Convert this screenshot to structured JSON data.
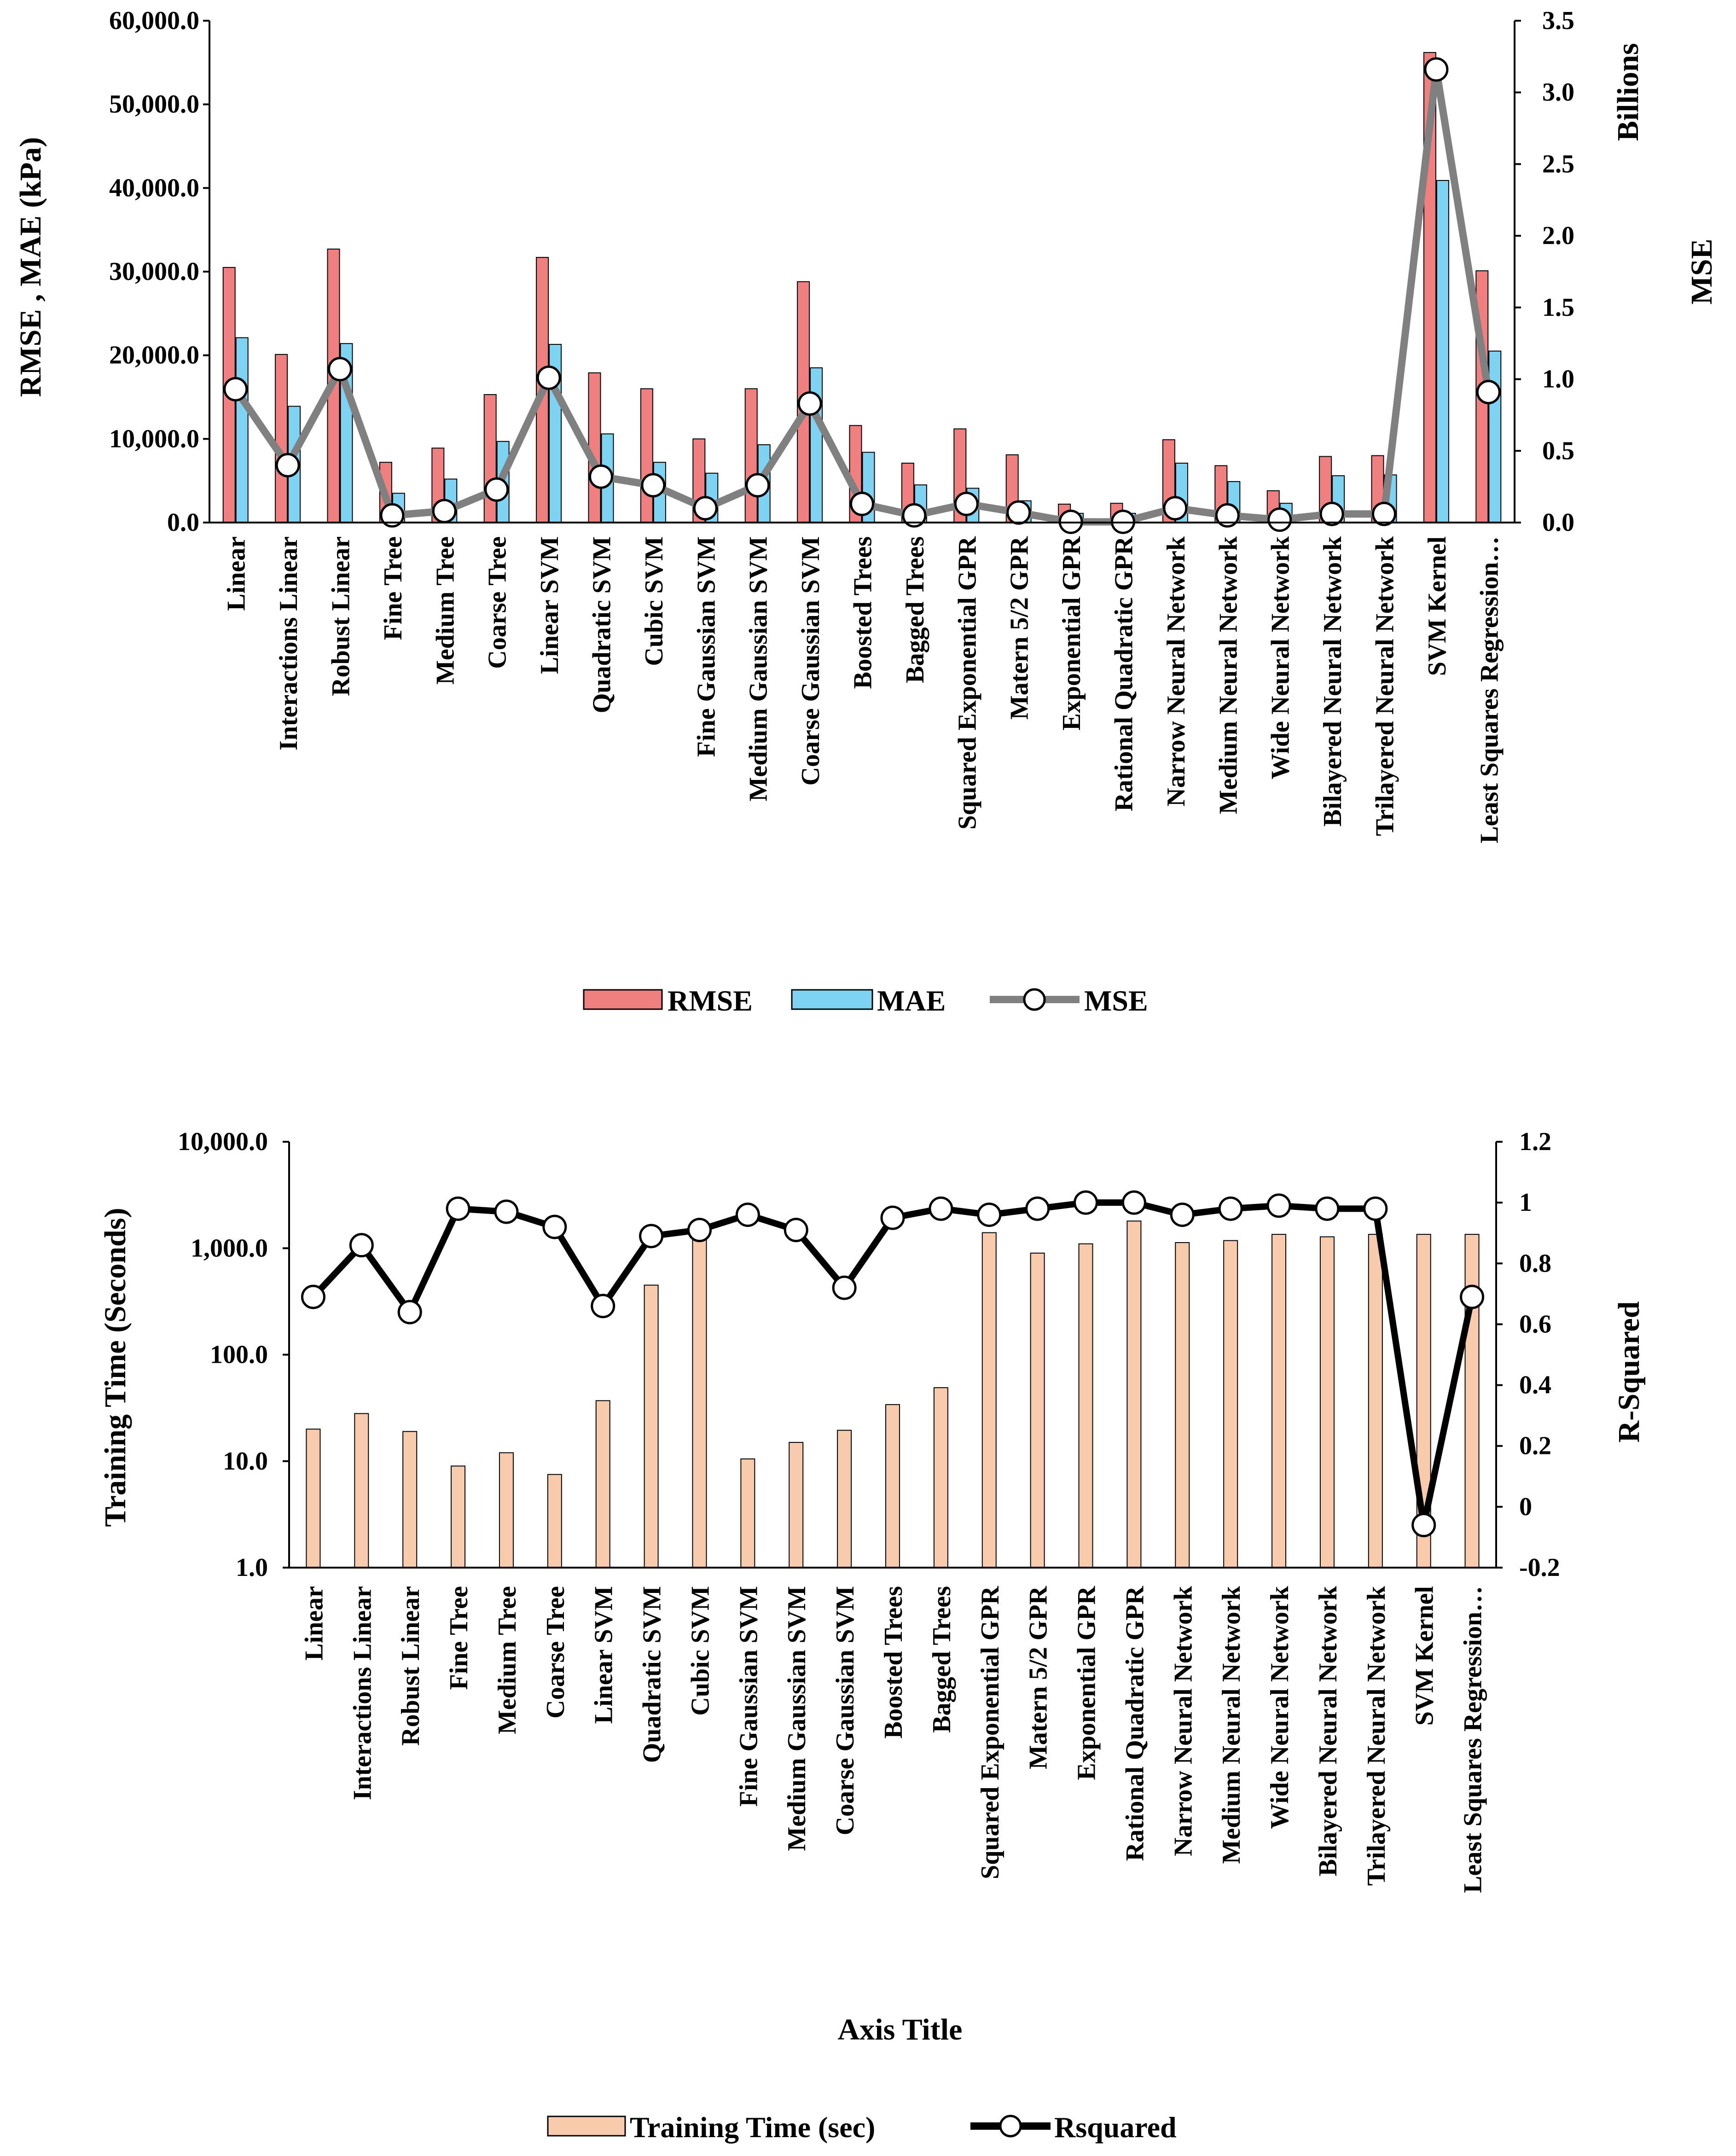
{
  "chart_data": [
    {
      "type": "bar",
      "categories": [
        "Linear",
        "Interactions Linear",
        "Robust Linear",
        "Fine Tree",
        "Medium Tree",
        "Coarse Tree",
        "Linear SVM",
        "Quadratic SVM",
        "Cubic SVM",
        "Fine Gaussian SVM",
        "Medium Gaussian SVM",
        "Coarse Gaussian SVM",
        "Boosted Trees",
        "Bagged Trees",
        "Squared Exponential GPR",
        "Matern 5/2 GPR",
        "Exponential GPR",
        "Rational Quadratic GPR",
        "Narrow Neural Network",
        "Medium Neural Network",
        "Wide Neural Network",
        "Bilayered Neural Network",
        "Trilayered Neural Network",
        "SVM Kernel",
        "Least Squares Regression…"
      ],
      "series": [
        {
          "name": "RMSE",
          "kind": "bar",
          "axis": "left",
          "color": "#f07f7f",
          "values": [
            30500,
            20100,
            32700,
            7200,
            8900,
            15300,
            31700,
            17900,
            16000,
            10000,
            16000,
            28800,
            11600,
            7100,
            11200,
            8100,
            2200,
            2300,
            9900,
            6800,
            3800,
            7900,
            8000,
            56200,
            30100
          ]
        },
        {
          "name": "MAE",
          "kind": "bar",
          "axis": "left",
          "color": "#7fd3f2",
          "values": [
            22100,
            13900,
            21400,
            3500,
            5200,
            9700,
            21300,
            10600,
            7200,
            5900,
            9300,
            18500,
            8400,
            4500,
            4100,
            2600,
            1100,
            1100,
            7100,
            4900,
            2300,
            5600,
            5700,
            40900,
            20500
          ]
        },
        {
          "name": "MSE",
          "kind": "line",
          "axis": "right",
          "color": "#808080",
          "values": [
            0.93,
            0.4,
            1.07,
            0.05,
            0.08,
            0.23,
            1.01,
            0.32,
            0.26,
            0.1,
            0.26,
            0.83,
            0.13,
            0.05,
            0.13,
            0.07,
            0.005,
            0.005,
            0.1,
            0.05,
            0.02,
            0.06,
            0.06,
            3.16,
            0.91
          ]
        }
      ],
      "ylabel": "RMSE , MAE (kPa)",
      "y2label": "MSE",
      "y2unit": "Billions",
      "ylim": [
        0,
        60000
      ],
      "y2lim": [
        0,
        3.5
      ],
      "yticks": [
        "0.0",
        "10,000.0",
        "20,000.0",
        "30,000.0",
        "40,000.0",
        "50,000.0",
        "60,000.0"
      ],
      "y2ticks": [
        "0.0",
        "0.5",
        "1.0",
        "1.5",
        "2.0",
        "2.5",
        "3.0",
        "3.5"
      ],
      "legend": [
        "RMSE",
        "MAE",
        "MSE"
      ],
      "legend_position": "bottom"
    },
    {
      "type": "bar",
      "categories": [
        "Linear",
        "Interactions Linear",
        "Robust Linear",
        "Fine Tree",
        "Medium Tree",
        "Coarse Tree",
        "Linear SVM",
        "Quadratic SVM",
        "Cubic SVM",
        "Fine Gaussian SVM",
        "Medium Gaussian SVM",
        "Coarse Gaussian SVM",
        "Boosted Trees",
        "Bagged Trees",
        "Squared Exponential GPR",
        "Matern 5/2 GPR",
        "Exponential GPR",
        "Rational Quadratic GPR",
        "Narrow Neural Network",
        "Medium Neural Network",
        "Wide Neural Network",
        "Bilayered Neural Network",
        "Trilayered Neural Network",
        "SVM Kernel",
        "Least Squares Regression…"
      ],
      "series": [
        {
          "name": "Training Time (sec)",
          "kind": "bar",
          "axis": "left",
          "color": "#f8cbad",
          "values": [
            20,
            28,
            19,
            9,
            12,
            7.5,
            37,
            450,
            1300,
            10.5,
            15,
            19.5,
            34,
            49,
            1400,
            900,
            1100,
            1800,
            1130,
            1180,
            1350,
            1280,
            1350,
            1350,
            1350
          ]
        },
        {
          "name": "Rsquared",
          "kind": "line",
          "axis": "right",
          "color": "#000000",
          "values": [
            0.69,
            0.86,
            0.64,
            0.98,
            0.97,
            0.92,
            0.66,
            0.89,
            0.91,
            0.96,
            0.91,
            0.72,
            0.95,
            0.98,
            0.96,
            0.98,
            1.0,
            1.0,
            0.96,
            0.98,
            0.99,
            0.98,
            0.98,
            -0.06,
            0.69
          ]
        }
      ],
      "xlabel": "Axis Title",
      "ylabel": "Training Time (Seconds)",
      "y2label": "R-Squared",
      "yscale": "log",
      "ylim": [
        1,
        10000
      ],
      "y2lim": [
        -0.2,
        1.2
      ],
      "yticks": [
        "1.0",
        "10.0",
        "100.0",
        "1,000.0",
        "10,000.0"
      ],
      "y2ticks": [
        "-0.2",
        "0",
        "0.2",
        "0.4",
        "0.6",
        "0.8",
        "1",
        "1.2"
      ],
      "legend": [
        "Training Time (sec)",
        "Rsquared"
      ],
      "legend_position": "bottom"
    }
  ]
}
